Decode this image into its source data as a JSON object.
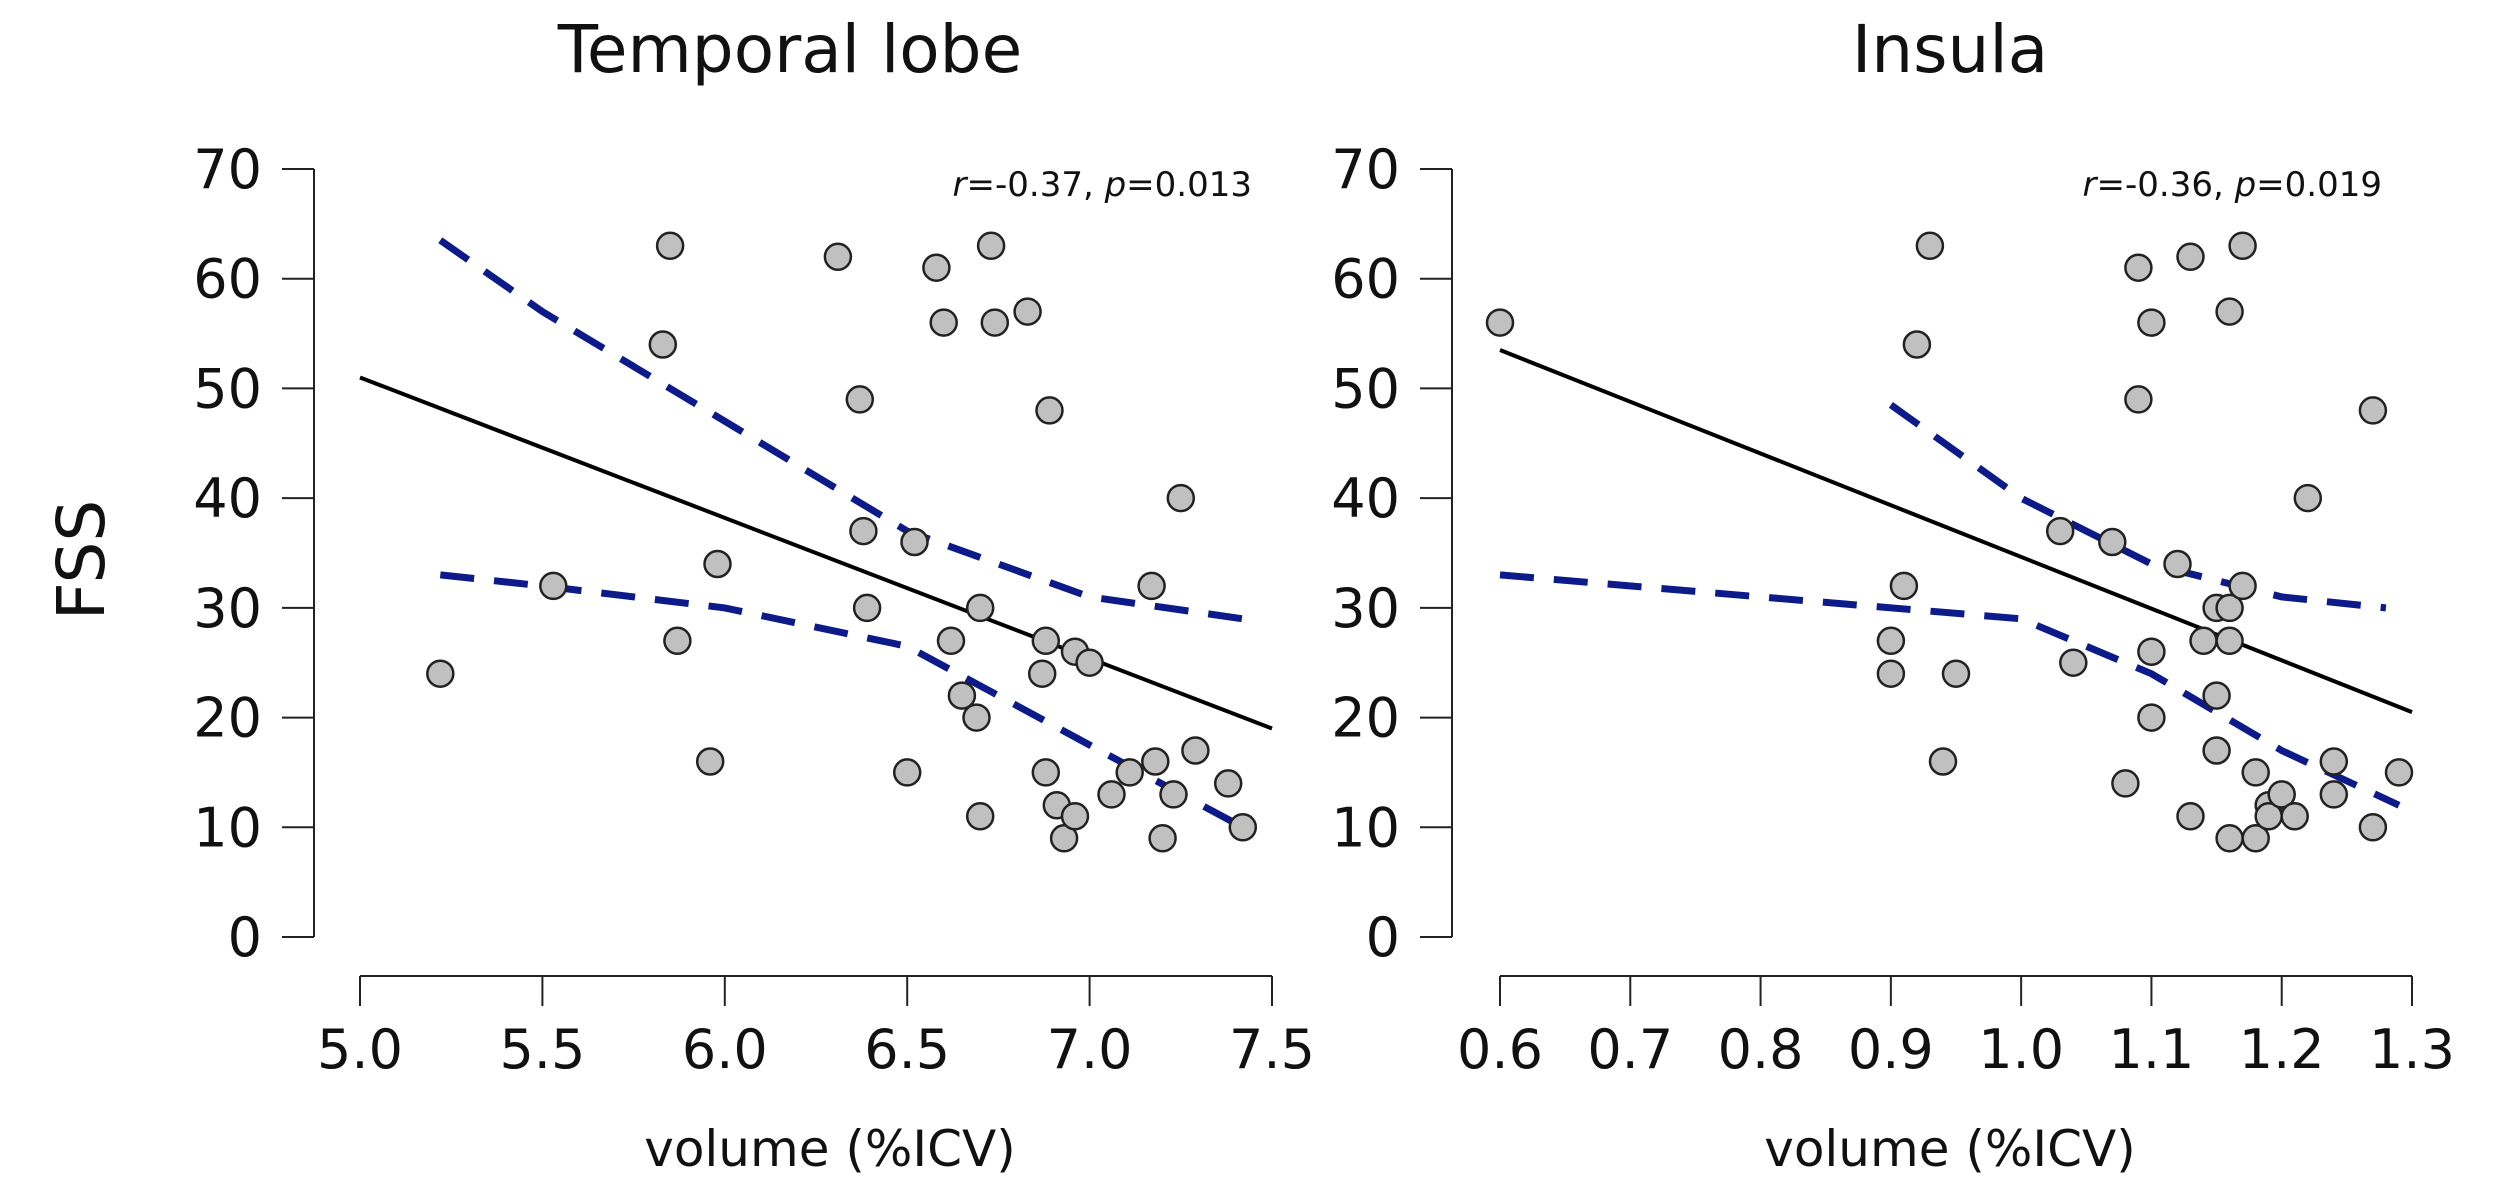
{
  "chart_data": [
    {
      "type": "scatter",
      "title": "Temporal lobe",
      "xlabel": "volume (%ICV)",
      "ylabel": "FSS",
      "xlim": [
        5.0,
        7.5
      ],
      "ylim": [
        0,
        70
      ],
      "xticks": [
        "5.0",
        "5.5",
        "6.0",
        "6.5",
        "7.0",
        "7.5"
      ],
      "yticks": [
        "0",
        "10",
        "20",
        "30",
        "40",
        "50",
        "60",
        "70"
      ],
      "stat_r_label": "r",
      "stat_r_value": "=-0.37, ",
      "stat_p_label": "p",
      "stat_p_value": "=0.013",
      "points": [
        [
          5.22,
          24
        ],
        [
          5.53,
          32
        ],
        [
          5.83,
          54
        ],
        [
          5.85,
          63
        ],
        [
          5.87,
          27
        ],
        [
          5.96,
          16
        ],
        [
          5.98,
          34
        ],
        [
          6.31,
          62
        ],
        [
          6.37,
          49
        ],
        [
          6.38,
          37
        ],
        [
          6.39,
          30
        ],
        [
          6.5,
          15
        ],
        [
          6.52,
          36
        ],
        [
          6.58,
          61
        ],
        [
          6.6,
          56
        ],
        [
          6.62,
          27
        ],
        [
          6.65,
          22
        ],
        [
          6.69,
          20
        ],
        [
          6.7,
          11
        ],
        [
          6.7,
          30
        ],
        [
          6.73,
          63
        ],
        [
          6.74,
          56
        ],
        [
          6.83,
          57
        ],
        [
          6.87,
          24
        ],
        [
          6.88,
          27
        ],
        [
          6.88,
          15
        ],
        [
          6.89,
          48
        ],
        [
          6.91,
          12
        ],
        [
          6.93,
          9
        ],
        [
          6.96,
          26
        ],
        [
          6.96,
          11
        ],
        [
          7.0,
          25
        ],
        [
          7.06,
          13
        ],
        [
          7.11,
          15
        ],
        [
          7.17,
          32
        ],
        [
          7.18,
          16
        ],
        [
          7.2,
          9
        ],
        [
          7.23,
          13
        ],
        [
          7.25,
          40
        ],
        [
          7.29,
          17
        ],
        [
          7.38,
          14
        ],
        [
          7.42,
          10
        ]
      ],
      "fit_line": {
        "x": [
          5.0,
          7.5
        ],
        "y": [
          51,
          19
        ]
      },
      "ci_upper": {
        "x": [
          5.22,
          5.5,
          6.0,
          6.5,
          7.0,
          7.42
        ],
        "y": [
          63.5,
          57,
          47,
          37,
          31,
          29
        ]
      },
      "ci_lower": {
        "x": [
          5.22,
          5.5,
          6.0,
          6.5,
          7.0,
          7.42
        ],
        "y": [
          33,
          32,
          30,
          26.5,
          17.5,
          10
        ]
      },
      "point_color": "#c0c0c0",
      "ci_color": "#0c1a8a"
    },
    {
      "type": "scatter",
      "title": "Insula",
      "xlabel": "volume (%ICV)",
      "ylabel": "",
      "xlim": [
        0.6,
        1.3
      ],
      "ylim": [
        0,
        70
      ],
      "xticks": [
        "0.6",
        "0.7",
        "0.8",
        "0.9",
        "1.0",
        "1.1",
        "1.2",
        "1.3"
      ],
      "yticks": [
        "0",
        "10",
        "20",
        "30",
        "40",
        "50",
        "60",
        "70"
      ],
      "stat_r_label": "r",
      "stat_r_value": "=-0.36, ",
      "stat_p_label": "p",
      "stat_p_value": "=0.019",
      "points": [
        [
          0.6,
          56
        ],
        [
          0.9,
          27
        ],
        [
          0.9,
          24
        ],
        [
          0.91,
          32
        ],
        [
          0.92,
          54
        ],
        [
          0.93,
          63
        ],
        [
          0.94,
          16
        ],
        [
          0.95,
          24
        ],
        [
          1.03,
          37
        ],
        [
          1.04,
          25
        ],
        [
          1.07,
          36
        ],
        [
          1.08,
          14
        ],
        [
          1.09,
          61
        ],
        [
          1.09,
          49
        ],
        [
          1.1,
          56
        ],
        [
          1.1,
          26
        ],
        [
          1.1,
          20
        ],
        [
          1.12,
          34
        ],
        [
          1.13,
          62
        ],
        [
          1.13,
          11
        ],
        [
          1.14,
          27
        ],
        [
          1.15,
          30
        ],
        [
          1.15,
          22
        ],
        [
          1.15,
          17
        ],
        [
          1.16,
          57
        ],
        [
          1.16,
          30
        ],
        [
          1.16,
          27
        ],
        [
          1.16,
          9
        ],
        [
          1.17,
          63
        ],
        [
          1.17,
          32
        ],
        [
          1.18,
          15
        ],
        [
          1.18,
          9
        ],
        [
          1.19,
          12
        ],
        [
          1.19,
          11
        ],
        [
          1.2,
          13
        ],
        [
          1.21,
          11
        ],
        [
          1.22,
          40
        ],
        [
          1.24,
          16
        ],
        [
          1.24,
          13
        ],
        [
          1.27,
          48
        ],
        [
          1.27,
          10
        ],
        [
          1.29,
          15
        ]
      ],
      "fit_line": {
        "x": [
          0.6,
          1.3
        ],
        "y": [
          53.5,
          20.5
        ]
      },
      "ci_upper": {
        "x": [
          0.9,
          1.0,
          1.1,
          1.2,
          1.28
        ],
        "y": [
          48.5,
          40,
          34,
          31,
          30
        ]
      },
      "ci_lower": {
        "x": [
          0.6,
          0.8,
          1.0,
          1.1,
          1.2,
          1.29
        ],
        "y": [
          33,
          31,
          29,
          24,
          17,
          12
        ]
      },
      "point_color": "#c0c0c0",
      "ci_color": "#0c1a8a"
    }
  ]
}
